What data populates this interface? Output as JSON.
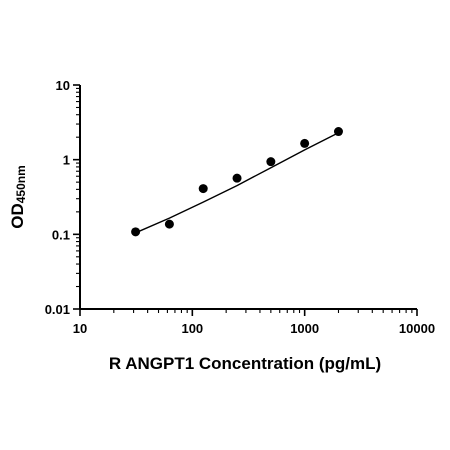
{
  "chart_data": {
    "type": "scatter",
    "xlabel": "R ANGPT1 Concentration (pg/mL)",
    "ylabel": "OD",
    "ylabel_subscript": "450nm",
    "x_scale": "log",
    "y_scale": "log",
    "xlim": [
      10,
      10000
    ],
    "ylim": [
      0.01,
      10
    ],
    "x_ticks": [
      "10",
      "100",
      "1000",
      "10000"
    ],
    "y_ticks": [
      "0.01",
      "0.1",
      "1",
      "10"
    ],
    "grid": false,
    "points": [
      {
        "x": 31.25,
        "y": 0.108
      },
      {
        "x": 62.5,
        "y": 0.137
      },
      {
        "x": 125,
        "y": 0.41
      },
      {
        "x": 250,
        "y": 0.565
      },
      {
        "x": 500,
        "y": 0.94
      },
      {
        "x": 1000,
        "y": 1.65
      },
      {
        "x": 2000,
        "y": 2.38
      }
    ],
    "fit_curve": {
      "type": "line",
      "points": [
        {
          "x": 31.25,
          "y": 0.105
        },
        {
          "x": 62.5,
          "y": 0.165
        },
        {
          "x": 125,
          "y": 0.27
        },
        {
          "x": 250,
          "y": 0.45
        },
        {
          "x": 500,
          "y": 0.78
        },
        {
          "x": 1000,
          "y": 1.35
        },
        {
          "x": 2000,
          "y": 2.3
        }
      ]
    },
    "colors": {
      "marker": "#000000",
      "line": "#000000",
      "axis": "#000000"
    }
  }
}
